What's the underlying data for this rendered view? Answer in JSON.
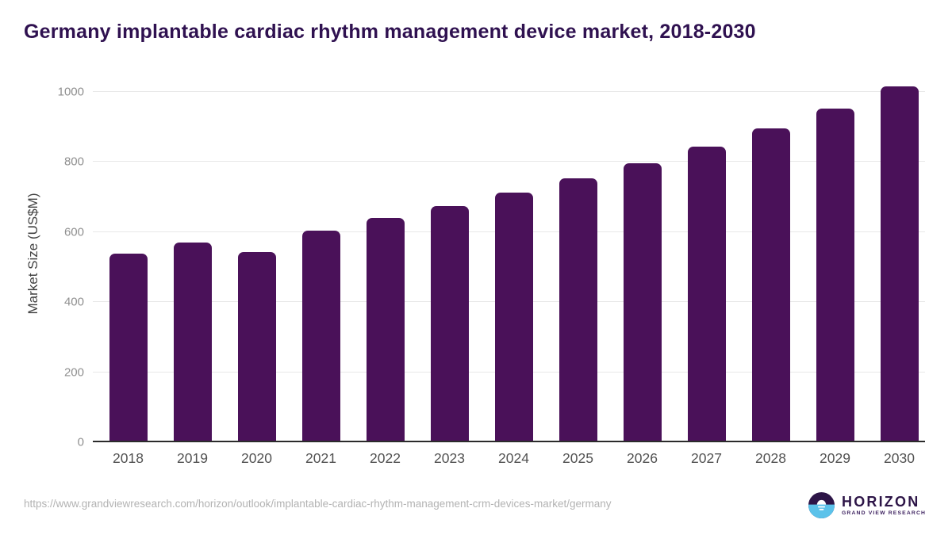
{
  "colors": {
    "bar": "#4A1159",
    "title": "#2F1150",
    "logo_dark": "#2D1547",
    "logo_blue": "#5BC2EA",
    "gridline": "#E8E8E8",
    "axis_line": "#2B2B2B"
  },
  "chart_data": {
    "type": "bar",
    "title": "Germany implantable cardiac rhythm management device market, 2018-2030",
    "categories": [
      "2018",
      "2019",
      "2020",
      "2021",
      "2022",
      "2023",
      "2024",
      "2025",
      "2026",
      "2027",
      "2028",
      "2029",
      "2030"
    ],
    "values": [
      534,
      565,
      539,
      600,
      635,
      670,
      708,
      749,
      793,
      840,
      892,
      949,
      1011
    ],
    "xlabel": "",
    "ylabel": "Market Size (US$M)",
    "ylim": [
      0,
      1000
    ],
    "yticks": [
      0,
      200,
      400,
      600,
      800,
      1000
    ],
    "grid": true,
    "legend": "none",
    "bar_color": "#4A1159"
  },
  "footer": {
    "source_url": "https://www.grandviewresearch.com/horizon/outlook/implantable-cardiac-rhythm-management-crm-devices-market/germany",
    "logo": {
      "brand": "HORIZON",
      "subtitle": "GRAND VIEW RESEARCH",
      "icon": "horizon-sun-over-water-icon"
    }
  }
}
